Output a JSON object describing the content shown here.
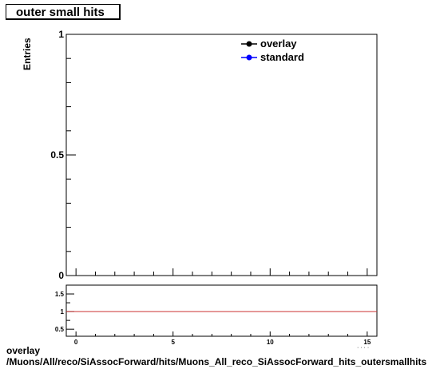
{
  "title": "outer small hits",
  "footer": {
    "line1": "overlay",
    "line2": "/Muons/All/reco/SiAssocForward/hits/Muons_All_reco_SiAssocForward_hits_outersmallhits"
  },
  "colors": {
    "overlay": "#000000",
    "standard": "#0000ff",
    "ratio_line": "#cc3333"
  },
  "chart_data": [
    {
      "type": "line",
      "title": "outer small hits",
      "ylabel": "Entries",
      "xlabel": "",
      "xlim": [
        -0.5,
        15.5
      ],
      "ylim": [
        0,
        1
      ],
      "yticks": [
        0,
        0.5,
        1
      ],
      "ytick_labels": [
        "0",
        "0.5",
        "1"
      ],
      "legend_position": "top-right",
      "series": [
        {
          "name": "overlay",
          "x": [],
          "y": []
        },
        {
          "name": "standard",
          "x": [],
          "y": []
        }
      ]
    },
    {
      "type": "line",
      "xlim": [
        -0.5,
        15.5
      ],
      "ylim": [
        0.3,
        1.75
      ],
      "xticks": [
        0,
        5,
        10,
        15
      ],
      "xtick_labels": [
        "0",
        "5",
        "10",
        "15"
      ],
      "yticks": [
        0.5,
        1,
        1.5
      ],
      "ytick_labels": [
        "0.5",
        "1",
        "1.5"
      ],
      "reference_line": 1
    }
  ]
}
